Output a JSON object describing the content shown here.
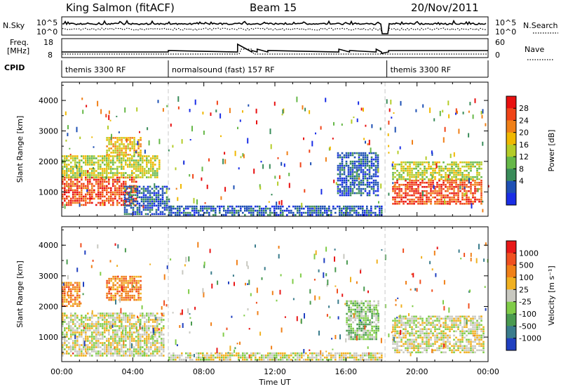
{
  "header": {
    "station": "King Salmon (fitACF)",
    "beam": "Beam 15",
    "date": "20/Nov/2011"
  },
  "panels": {
    "nsky_label": "N.Sky",
    "nsky_ticks": [
      "10^5",
      "10^0"
    ],
    "nsearch_label": "N.Search",
    "freq_label_1": "Freq.",
    "freq_label_2": "[MHz]",
    "freq_ticks": [
      "18",
      "8"
    ],
    "nave_ticks": [
      "60",
      "0"
    ],
    "nave_label": "Nave",
    "cpid_label": "CPID",
    "cpid_segments": [
      {
        "label": "themis 3300 RF",
        "start": 0.0,
        "end": 6.0
      },
      {
        "label": "normalsound (fast) 157 RF",
        "start": 6.0,
        "end": 18.3
      },
      {
        "label": "themis 3300 RF",
        "start": 18.3,
        "end": 24.0
      }
    ]
  },
  "colorbars": {
    "power": {
      "label": "Power [dB]",
      "ticks": [
        "28",
        "24",
        "20",
        "16",
        "12",
        "8",
        "4"
      ],
      "colors": [
        "#1a2ee6",
        "#1e50b4",
        "#3a8c5a",
        "#66b848",
        "#b4cc28",
        "#f0b800",
        "#f08018",
        "#f04418",
        "#e81010"
      ]
    },
    "velocity": {
      "label": "Velocity [m s⁻¹]",
      "ticks": [
        "1000",
        "500",
        "100",
        "25",
        "-25",
        "-100",
        "-500",
        "-1000"
      ],
      "colors": [
        "#2040c0",
        "#3a7c8c",
        "#4a9a50",
        "#80cc48",
        "#c8c8c0",
        "#f0b020",
        "#f08018",
        "#f05020",
        "#e81818"
      ]
    }
  },
  "chart_data": [
    {
      "type": "heatmap",
      "title": "Power",
      "xlabel": "Time UT",
      "ylabel": "Slant Range [km]",
      "xlim": [
        0,
        24
      ],
      "ylim": [
        200,
        4600
      ],
      "x_ticks": [
        "00:00",
        "04:00",
        "08:00",
        "12:00",
        "16:00",
        "20:00",
        "00:00"
      ],
      "y_ticks": [
        "1000",
        "2000",
        "3000",
        "4000"
      ],
      "colorbar": "power",
      "regions": [
        {
          "t0": 0.0,
          "t1": 4.2,
          "r0": 600,
          "r1": 1500,
          "level": 7
        },
        {
          "t0": 0.0,
          "t1": 5.5,
          "r0": 1500,
          "r1": 2200,
          "level": 4
        },
        {
          "t0": 2.5,
          "t1": 4.5,
          "r0": 2200,
          "r1": 2800,
          "level": 5
        },
        {
          "t0": 3.5,
          "t1": 6.0,
          "r0": 300,
          "r1": 1200,
          "level": 1
        },
        {
          "t0": 6.0,
          "t1": 18.0,
          "r0": 250,
          "r1": 550,
          "level": 1
        },
        {
          "t0": 15.5,
          "t1": 17.8,
          "r0": 900,
          "r1": 2300,
          "level": 1
        },
        {
          "t0": 18.6,
          "t1": 23.6,
          "r0": 600,
          "r1": 1400,
          "level": 7
        },
        {
          "t0": 18.6,
          "t1": 23.6,
          "r0": 1400,
          "r1": 2000,
          "level": 4
        }
      ]
    },
    {
      "type": "heatmap",
      "title": "Velocity",
      "xlabel": "Time UT",
      "ylabel": "Slant Range [km]",
      "xlim": [
        0,
        24
      ],
      "ylim": [
        200,
        4600
      ],
      "x_ticks": [
        "00:00",
        "04:00",
        "08:00",
        "12:00",
        "16:00",
        "20:00",
        "00:00"
      ],
      "y_ticks": [
        "1000",
        "2000",
        "3000",
        "4000"
      ],
      "colorbar": "velocity",
      "regions": [
        {
          "t0": 0.0,
          "t1": 5.8,
          "r0": 400,
          "r1": 1800,
          "level": 4
        },
        {
          "t0": 2.5,
          "t1": 4.5,
          "r0": 2200,
          "r1": 3000,
          "level": 6
        },
        {
          "t0": 0.0,
          "t1": 1.0,
          "r0": 2000,
          "r1": 2800,
          "level": 6
        },
        {
          "t0": 6.0,
          "t1": 18.0,
          "r0": 250,
          "r1": 500,
          "level": 4
        },
        {
          "t0": 16.0,
          "t1": 17.8,
          "r0": 900,
          "r1": 2200,
          "level": 3
        },
        {
          "t0": 18.6,
          "t1": 23.8,
          "r0": 500,
          "r1": 1700,
          "level": 4
        }
      ]
    }
  ]
}
